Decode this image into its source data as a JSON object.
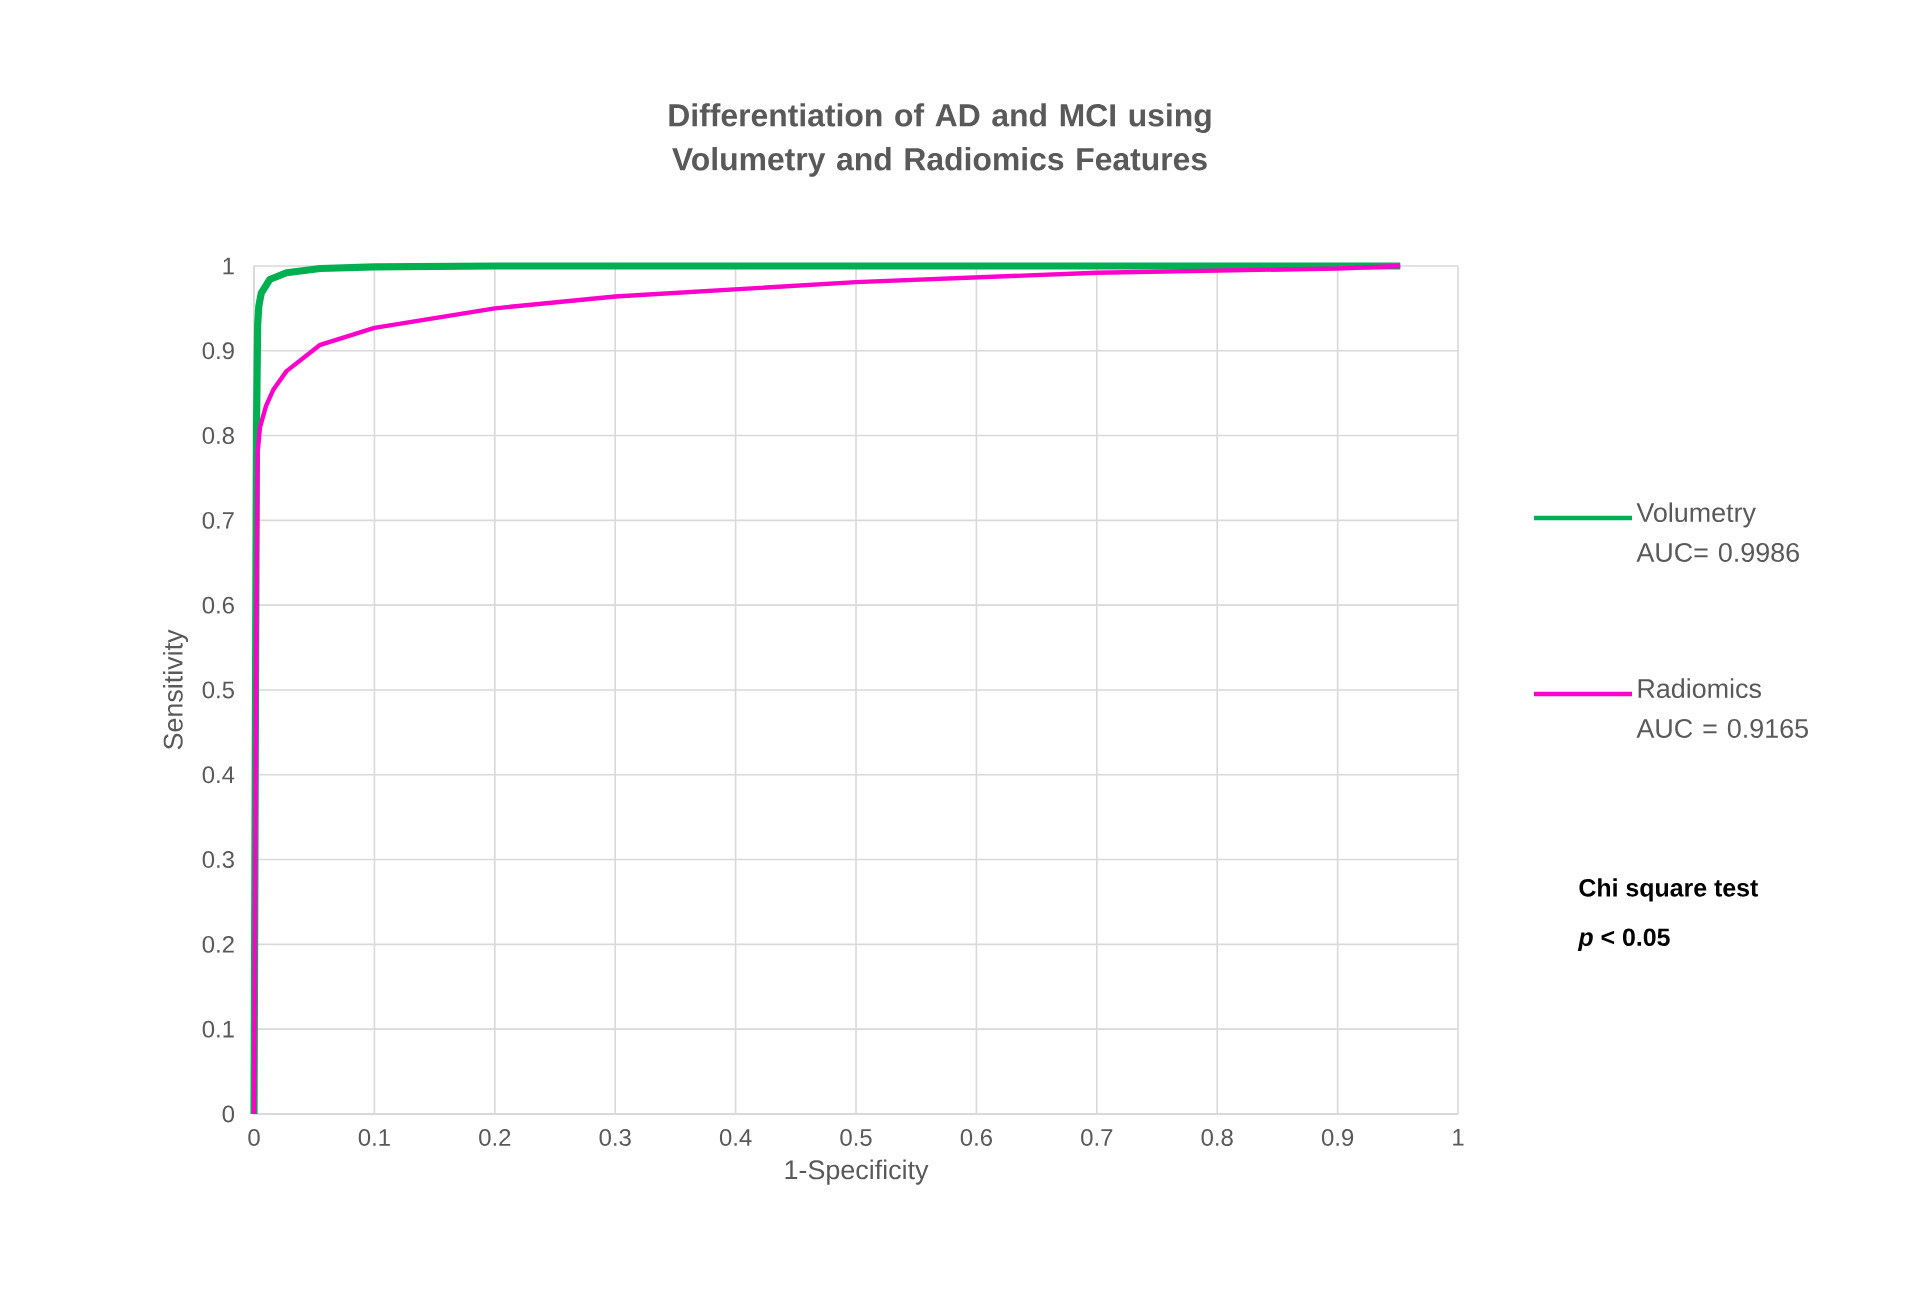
{
  "chart_data": {
    "type": "line",
    "title": "Differentiation of AD and MCI using Volumetry and Radiomics Features",
    "xlabel": "1-Specificity",
    "ylabel": "Sensitivity",
    "xlim": [
      0,
      1
    ],
    "ylim": [
      0,
      1
    ],
    "xticks": [
      0,
      0.1,
      0.2,
      0.3,
      0.4,
      0.5,
      0.6,
      0.7,
      0.8,
      0.9,
      1
    ],
    "yticks": [
      0,
      0.1,
      0.2,
      0.3,
      0.4,
      0.5,
      0.6,
      0.7,
      0.8,
      0.9,
      1
    ],
    "grid": true,
    "legend": "right",
    "marker": "none",
    "line_style": "solid",
    "series": [
      {
        "name": "Volumetry AUC= 0.9986",
        "color": "#00b050",
        "x": [
          0,
          0.002,
          0.003,
          0.004,
          0.006,
          0.013,
          0.027,
          0.055,
          0.1,
          0.2,
          0.952
        ],
        "values": [
          0,
          0.8,
          0.93,
          0.953,
          0.968,
          0.984,
          0.992,
          0.997,
          0.999,
          1.0,
          1.0
        ]
      },
      {
        "name": "Radiomics AUC = 0.9165",
        "color": "#ff00cc",
        "x": [
          0,
          0.002,
          0.003,
          0.005,
          0.01,
          0.016,
          0.027,
          0.055,
          0.1,
          0.2,
          0.3,
          0.5,
          0.7,
          0.9,
          0.952
        ],
        "values": [
          0,
          0.6,
          0.78,
          0.81,
          0.835,
          0.854,
          0.876,
          0.907,
          0.927,
          0.95,
          0.964,
          0.981,
          0.992,
          0.997,
          1.0
        ]
      }
    ],
    "annotations": [
      "Chi square test",
      "*p* < 0.05"
    ]
  }
}
